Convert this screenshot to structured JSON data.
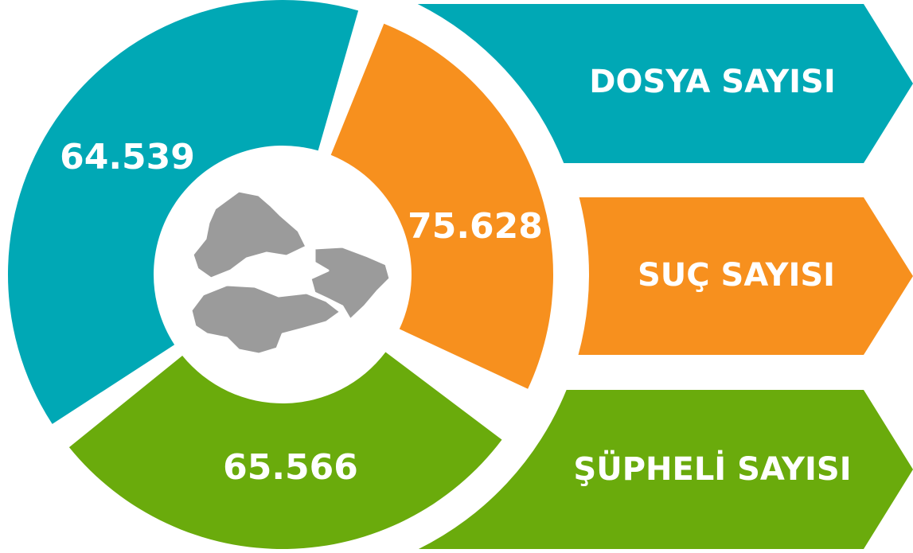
{
  "items": [
    {
      "label": "DOSYA SAYISI",
      "value": "64.539"
    },
    {
      "label": "SUÇ SAYISI",
      "value": "75.628"
    },
    {
      "label": "ŞÜPHELİ SAYISI",
      "value": "65.566"
    }
  ]
}
